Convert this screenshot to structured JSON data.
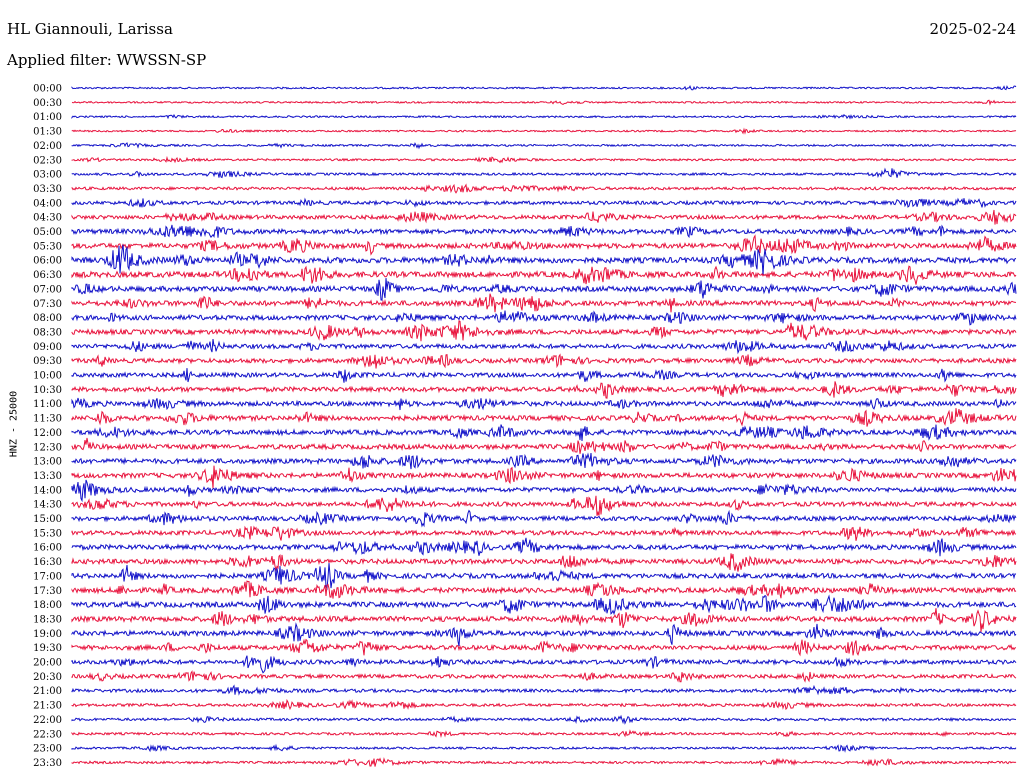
{
  "header": {
    "station": "HL Giannouli, Larissa",
    "date": "2025-02-24",
    "filter": "Applied filter: WWSSN-SP"
  },
  "chart_data": {
    "type": "line",
    "chart_kind": "helicorder",
    "channel_label": "HNZ - 25000",
    "row_labels": [
      "00:00",
      "00:30",
      "01:00",
      "01:30",
      "02:00",
      "02:30",
      "03:00",
      "03:30",
      "04:00",
      "04:30",
      "05:00",
      "05:30",
      "06:00",
      "06:30",
      "07:00",
      "07:30",
      "08:00",
      "08:30",
      "09:00",
      "09:30",
      "10:00",
      "10:30",
      "11:00",
      "11:30",
      "12:00",
      "12:30",
      "13:00",
      "13:30",
      "14:00",
      "14:30",
      "15:00",
      "15:30",
      "16:00",
      "16:30",
      "17:00",
      "17:30",
      "18:00",
      "18:30",
      "19:00",
      "19:30",
      "20:00",
      "20:30",
      "21:00",
      "21:30",
      "22:00",
      "22:30",
      "23:00",
      "23:30"
    ],
    "series_colors": [
      "#1010c8",
      "#e8123c"
    ],
    "noise_level": [
      0.1,
      0.1,
      0.12,
      0.1,
      0.15,
      0.18,
      0.25,
      0.35,
      0.5,
      0.6,
      0.75,
      0.85,
      1.0,
      1.0,
      0.9,
      0.85,
      0.8,
      0.8,
      0.7,
      0.7,
      0.7,
      0.75,
      0.75,
      0.8,
      0.8,
      0.8,
      0.8,
      0.8,
      0.75,
      0.7,
      0.7,
      0.7,
      0.8,
      0.8,
      0.8,
      0.85,
      0.9,
      0.85,
      0.8,
      0.75,
      0.65,
      0.55,
      0.45,
      0.35,
      0.3,
      0.25,
      0.2,
      0.25
    ]
  }
}
